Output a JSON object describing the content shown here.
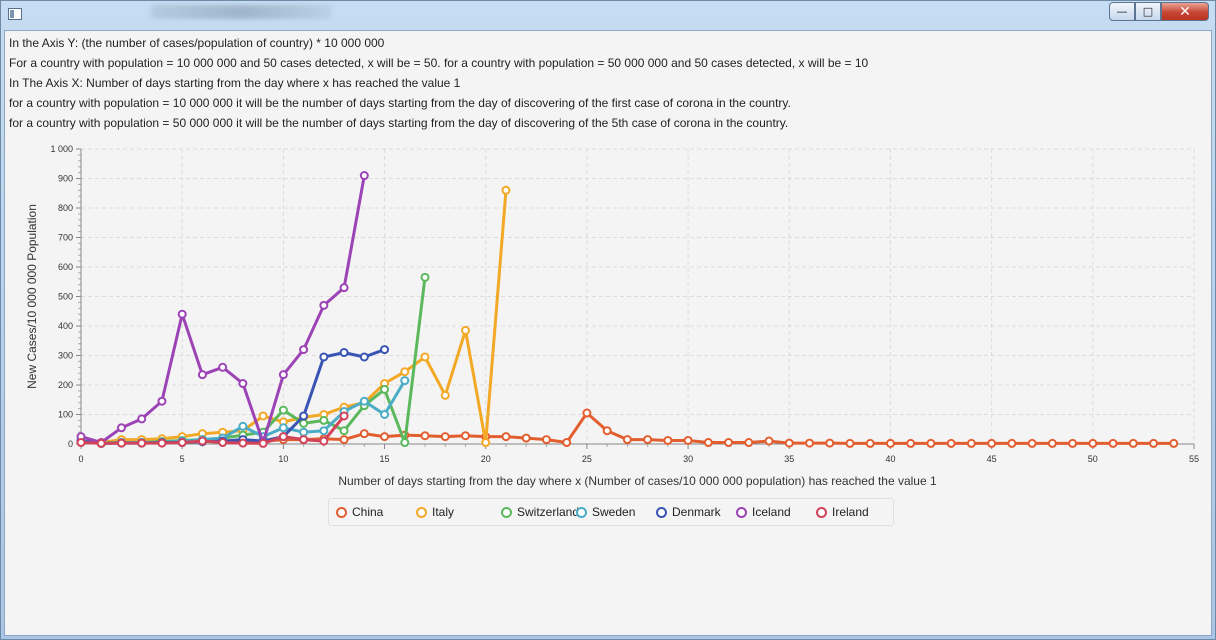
{
  "window": {
    "notes": [
      "In the Axis Y: (the number of cases/population of country) * 10 000 000",
      "For a country with population = 10 000 000 and 50 cases detected, x will be = 50. for a country with population = 50 000 000 and 50 cases detected, x will be = 10",
      "In The Axis X: Number of days starting from the day where x has reached the value 1",
      "for a country with population = 10 000 000 it will be the number of days starting from the day of discovering of the first case of corona in the country.",
      "for a country with population = 50 000 000 it will be the number of days starting from the day of discovering of the 5th case of corona in the country."
    ]
  },
  "chart_data": {
    "type": "line",
    "xlabel": "Number of days starting from the day where x (Number of cases/10 000 000 population) has reached the value 1",
    "ylabel": "New Cases/10 000 000 Population",
    "xlim": [
      0,
      55
    ],
    "ylim": [
      0,
      1000
    ],
    "xticks": [
      0,
      5,
      10,
      15,
      20,
      25,
      30,
      35,
      40,
      45,
      50,
      55
    ],
    "xtick_labels": [
      "0",
      "5",
      "10",
      "15",
      "20",
      "25",
      "30",
      "35",
      "40",
      "45",
      "50",
      "55"
    ],
    "yticks": [
      0,
      100,
      200,
      300,
      400,
      500,
      600,
      700,
      800,
      900,
      1000
    ],
    "ytick_labels": [
      "0",
      "100",
      "200",
      "300",
      "400",
      "500",
      "600",
      "700",
      "800",
      "900",
      "1 000"
    ],
    "grid": true,
    "legend_position": "bottom",
    "series": [
      {
        "name": "China",
        "color": "#e35e2f",
        "x": [
          0,
          1,
          2,
          3,
          4,
          5,
          6,
          7,
          8,
          9,
          10,
          11,
          12,
          13,
          14,
          15,
          16,
          17,
          18,
          19,
          20,
          21,
          22,
          23,
          24,
          25,
          26,
          27,
          28,
          29,
          30,
          31,
          32,
          33,
          34,
          35,
          36,
          37,
          38,
          39,
          40,
          41,
          42,
          43,
          44,
          45,
          46,
          47,
          48,
          49,
          50,
          51,
          52,
          53,
          54
        ],
        "y": [
          10,
          3,
          5,
          5,
          6,
          8,
          12,
          10,
          8,
          10,
          15,
          15,
          18,
          15,
          35,
          25,
          30,
          28,
          25,
          28,
          25,
          25,
          20,
          15,
          5,
          105,
          45,
          15,
          15,
          12,
          12,
          5,
          5,
          5,
          10,
          3,
          3,
          3,
          2,
          2,
          2,
          2,
          2,
          2,
          2,
          2,
          2,
          2,
          2,
          2,
          2,
          2,
          2,
          2,
          2
        ]
      },
      {
        "name": "Italy",
        "color": "#f3a826",
        "x": [
          0,
          1,
          2,
          3,
          4,
          5,
          6,
          7,
          8,
          9,
          10,
          11,
          12,
          13,
          14,
          15,
          16,
          17,
          18,
          19,
          20,
          21
        ],
        "y": [
          10,
          5,
          15,
          15,
          18,
          25,
          35,
          40,
          45,
          95,
          75,
          90,
          100,
          125,
          140,
          205,
          245,
          295,
          165,
          385,
          5,
          860
        ]
      },
      {
        "name": "Switzerland",
        "color": "#5cb85c",
        "x": [
          0,
          1,
          2,
          3,
          4,
          5,
          6,
          7,
          8,
          9,
          10,
          11,
          12,
          13,
          14,
          15,
          16,
          17
        ],
        "y": [
          10,
          3,
          5,
          5,
          8,
          12,
          15,
          20,
          30,
          40,
          115,
          70,
          80,
          45,
          130,
          185,
          5,
          565
        ]
      },
      {
        "name": "Sweden",
        "color": "#4bacc6",
        "x": [
          0,
          1,
          2,
          3,
          4,
          5,
          6,
          7,
          8,
          9,
          10,
          11,
          12,
          13,
          14,
          15,
          16
        ],
        "y": [
          10,
          3,
          5,
          5,
          5,
          10,
          15,
          20,
          60,
          25,
          55,
          40,
          45,
          110,
          145,
          100,
          215
        ]
      },
      {
        "name": "Denmark",
        "color": "#3a54b4",
        "x": [
          0,
          1,
          2,
          3,
          4,
          5,
          6,
          7,
          8,
          9,
          10,
          11,
          12,
          13,
          14,
          15
        ],
        "y": [
          10,
          2,
          3,
          3,
          5,
          5,
          8,
          10,
          15,
          10,
          25,
          95,
          295,
          310,
          295,
          320
        ]
      },
      {
        "name": "Iceland",
        "color": "#9c43b5",
        "x": [
          0,
          1,
          2,
          3,
          4,
          5,
          6,
          7,
          8,
          9,
          10,
          11,
          12,
          13,
          14
        ],
        "y": [
          25,
          5,
          55,
          85,
          145,
          440,
          235,
          260,
          205,
          5,
          235,
          320,
          470,
          530,
          910
        ]
      },
      {
        "name": "Ireland",
        "color": "#d2435a",
        "x": [
          0,
          1,
          2,
          3,
          4,
          5,
          6,
          7,
          8,
          9,
          10,
          11,
          12,
          13
        ],
        "y": [
          5,
          2,
          3,
          3,
          3,
          5,
          10,
          5,
          3,
          2,
          25,
          15,
          10,
          95
        ]
      }
    ]
  }
}
